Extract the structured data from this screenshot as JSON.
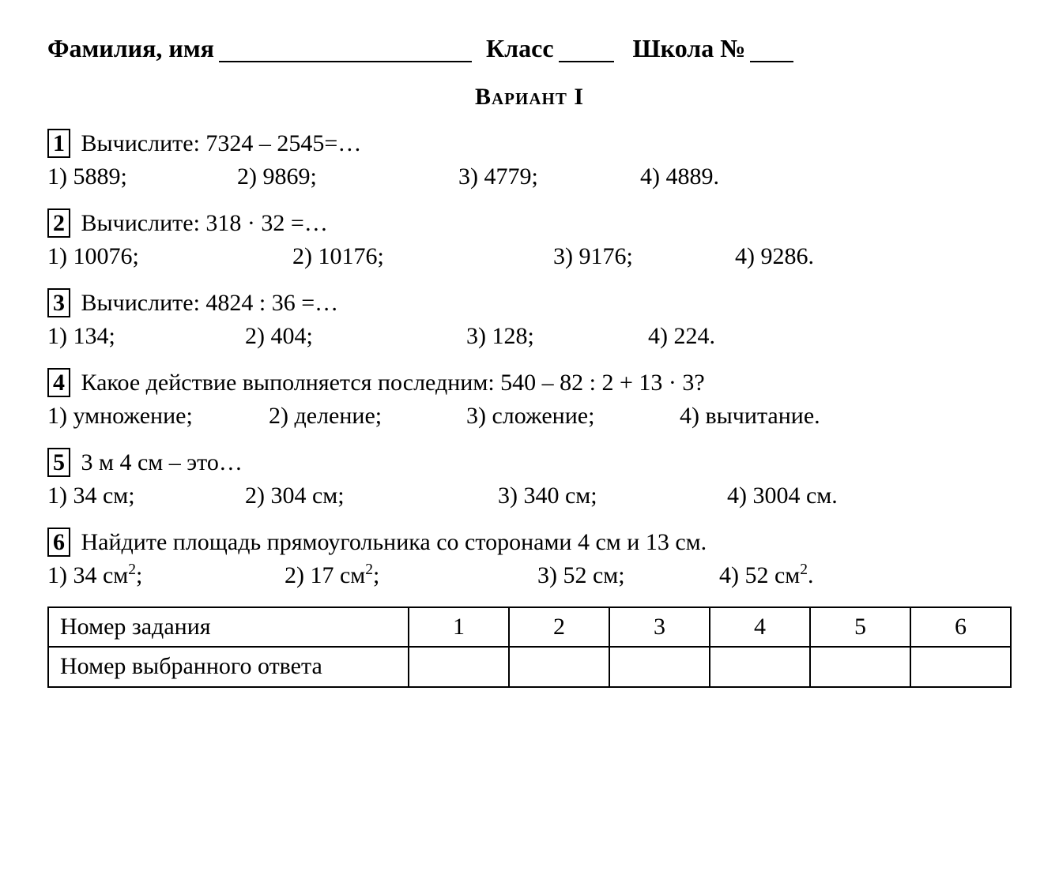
{
  "header": {
    "name_label": "Фамилия, имя",
    "class_label": "Класс",
    "school_label": "Школа №"
  },
  "variant_title": "Вариант I",
  "questions": [
    {
      "num": "1",
      "prompt": "Вычислите: 7324 – 2545=…",
      "answers": [
        "1) 5889;",
        "2) 9869;",
        "3) 4779;",
        "4) 4889."
      ],
      "aw_class": "aw-q1"
    },
    {
      "num": "2",
      "prompt": "Вычислите: 318 · 32 =…",
      "answers": [
        "1) 10076;",
        "2) 10176;",
        "3) 9176;",
        "4) 9286."
      ],
      "aw_class": "aw-q2"
    },
    {
      "num": "3",
      "prompt": "Вычислите: 4824 : 36 =…",
      "answers": [
        "1) 134;",
        "2) 404;",
        "3) 128;",
        "4) 224."
      ],
      "aw_class": "aw-q3"
    },
    {
      "num": "4",
      "prompt": "Какое действие выполняется последним: 540 – 82 : 2 + 13 · 3?",
      "answers": [
        "1) умножение;",
        "2) деление;",
        "3) сложение;",
        "4) вычитание."
      ],
      "aw_class": "aw-q4"
    },
    {
      "num": "5",
      "prompt": "3 м 4 см – это…",
      "answers": [
        "1) 34 см;",
        "2) 304 см;",
        "3) 340 см;",
        "4) 3004 см."
      ],
      "aw_class": "aw-q5"
    },
    {
      "num": "6",
      "prompt": "Найдите площадь прямоугольника со сторонами 4 см и 13 см.",
      "answers_html": [
        "1) 34 см<sup>2</sup>;",
        "2) 17 см<sup>2</sup>;",
        "3) 52 см;",
        "4) 52 см<sup>2</sup>."
      ],
      "aw_class": "aw-q6"
    }
  ],
  "table": {
    "row1_label": "Номер задания",
    "row2_label": "Номер выбранного ответа",
    "cols": [
      "1",
      "2",
      "3",
      "4",
      "5",
      "6"
    ]
  }
}
